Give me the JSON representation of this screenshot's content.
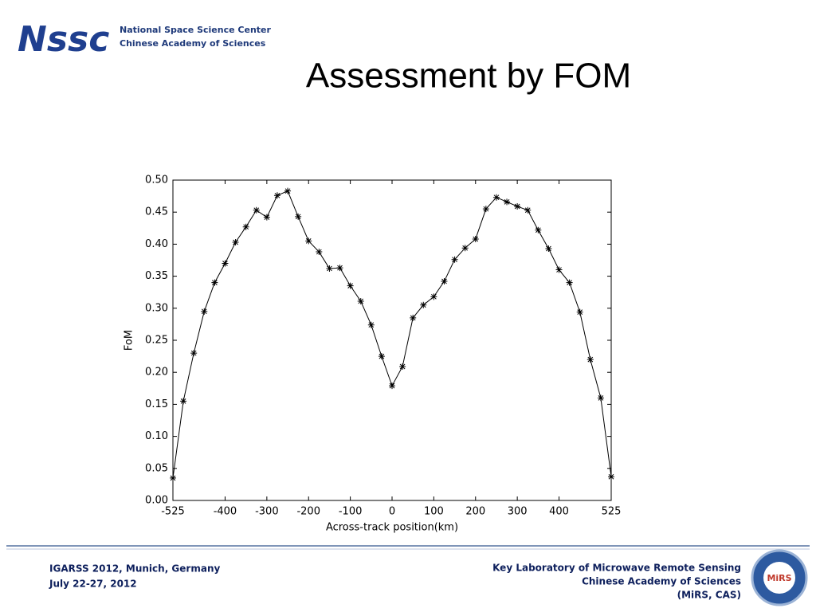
{
  "header": {
    "logo": "Nssc",
    "org": [
      "National Space Science Center",
      "Chinese Academy of Sciences"
    ],
    "title": "Assessment by FOM"
  },
  "chart_data": {
    "type": "line",
    "x": [
      -525,
      -500,
      -475,
      -450,
      -425,
      -400,
      -375,
      -350,
      -325,
      -300,
      -275,
      -250,
      -225,
      -200,
      -175,
      -150,
      -125,
      -100,
      -75,
      -50,
      -25,
      0,
      25,
      50,
      75,
      100,
      125,
      150,
      175,
      200,
      225,
      250,
      275,
      300,
      325,
      350,
      375,
      400,
      425,
      450,
      475,
      500,
      525
    ],
    "series": [
      {
        "color": "#000000",
        "marker": "asterisk",
        "values": [
          0.035,
          0.155,
          0.23,
          0.295,
          0.34,
          0.37,
          0.403,
          0.427,
          0.453,
          0.442,
          0.476,
          0.483,
          0.443,
          0.405,
          0.388,
          0.362,
          0.363,
          0.335,
          0.311,
          0.274,
          0.225,
          0.179,
          0.209,
          0.285,
          0.305,
          0.318,
          0.342,
          0.376,
          0.394,
          0.408,
          0.455,
          0.473,
          0.466,
          0.459,
          0.453,
          0.422,
          0.393,
          0.36,
          0.34,
          0.294,
          0.22,
          0.16,
          0.037
        ]
      }
    ],
    "xlim": [
      -525,
      525
    ],
    "ylim": [
      0,
      0.5
    ],
    "xticks": [
      -525,
      -400,
      -300,
      -200,
      -100,
      0,
      100,
      200,
      300,
      400,
      525
    ],
    "yticks": [
      {
        "value": 0,
        "label": "0.00"
      },
      {
        "value": 0.05,
        "label": "0.05"
      },
      {
        "value": 0.1,
        "label": "0.10"
      },
      {
        "value": 0.15,
        "label": "0.15"
      },
      {
        "value": 0.2,
        "label": "0.20"
      },
      {
        "value": 0.25,
        "label": "0.25"
      },
      {
        "value": 0.3,
        "label": "0.30"
      },
      {
        "value": 0.35,
        "label": "0.35"
      },
      {
        "value": 0.4,
        "label": "0.40"
      },
      {
        "value": 0.45,
        "label": "0.45"
      },
      {
        "value": 0.5,
        "label": "0.50"
      }
    ],
    "xlabel": "Across-track position(km)",
    "ylabel": "FoM"
  },
  "footer": {
    "left": [
      "IGARSS 2012, Munich, Germany",
      "July 22-27, 2012"
    ],
    "right": [
      "Key Laboratory of Microwave Remote Sensing",
      "Chinese Academy of Sciences",
      "(MiRS, CAS)"
    ],
    "badge": "MiRS"
  }
}
